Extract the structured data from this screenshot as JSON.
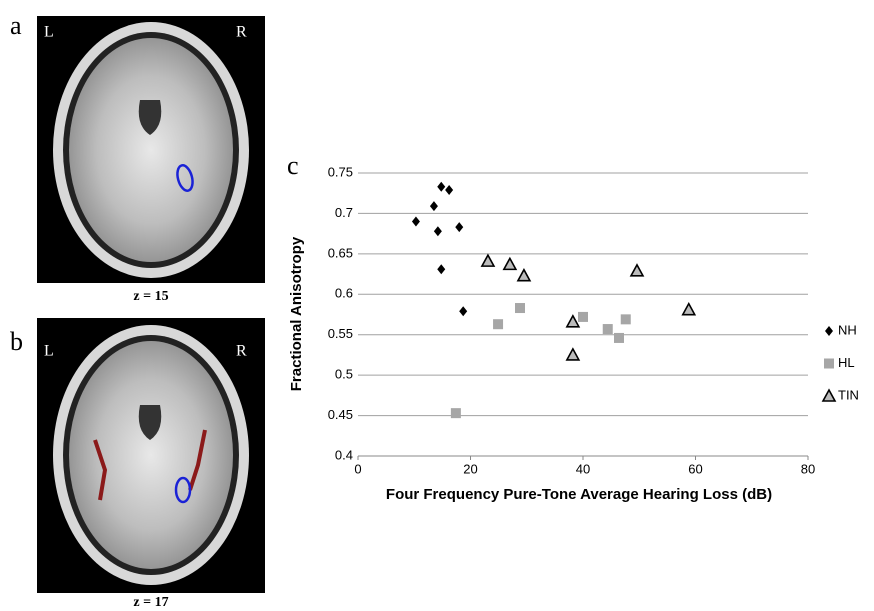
{
  "panels": {
    "a": {
      "letter": "a",
      "left": "L",
      "right": "R",
      "caption": "z = 15"
    },
    "b": {
      "letter": "b",
      "left": "L",
      "right": "R",
      "caption": "z = 17"
    }
  },
  "chart_data": {
    "type": "scatter",
    "letter": "c",
    "xlabel": "Four Frequency Pure-Tone Average Hearing Loss (dB)",
    "ylabel": "Fractional Anisotropy",
    "xlim": [
      0,
      80
    ],
    "xticks": [
      0,
      20,
      40,
      60,
      80
    ],
    "ylim": [
      0.4,
      0.75
    ],
    "yticks": [
      0.4,
      0.45,
      0.5,
      0.55,
      0.6,
      0.65,
      0.7,
      0.75
    ],
    "grid": true,
    "legend": "right",
    "series": [
      {
        "name": "NH",
        "color": "#000000",
        "marker": "diamond",
        "x": [
          10.3,
          13.5,
          14.8,
          16.2,
          14.2,
          18.0,
          14.8,
          18.7
        ],
        "values": [
          0.69,
          0.709,
          0.733,
          0.729,
          0.678,
          0.683,
          0.631,
          0.579
        ]
      },
      {
        "name": "HL",
        "color": "#a6a6a6",
        "marker": "square",
        "x": [
          24.9,
          28.8,
          40.0,
          44.4,
          46.4,
          47.6,
          17.4
        ],
        "values": [
          0.563,
          0.583,
          0.572,
          0.557,
          0.546,
          0.569,
          0.453
        ]
      },
      {
        "name": "TIN",
        "color": "#000000",
        "marker": "triangle",
        "x": [
          23.1,
          27.0,
          29.5,
          38.2,
          38.2,
          49.6,
          58.8
        ],
        "values": [
          0.641,
          0.637,
          0.623,
          0.566,
          0.525,
          0.629,
          0.581
        ]
      }
    ]
  }
}
